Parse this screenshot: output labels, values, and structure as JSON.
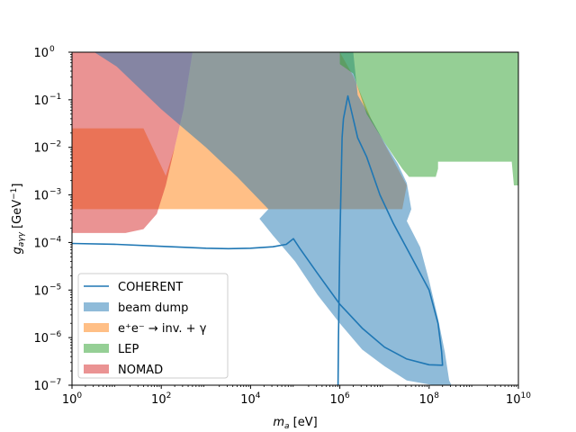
{
  "chart_data": {
    "type": "area",
    "title": "",
    "xlabel_main": "m",
    "xlabel_sub": "a",
    "xlabel_unit": " [eV]",
    "ylabel_main": "g",
    "ylabel_sub": "aγγ",
    "ylabel_unit_pre": " [GeV",
    "ylabel_unit_sup": "−1",
    "ylabel_unit_post": "]",
    "xscale": "log",
    "yscale": "log",
    "xlim_exp": [
      0,
      10
    ],
    "ylim_exp": [
      -7,
      0
    ],
    "x_ticks": [
      {
        "base": "10",
        "exp": "0"
      },
      {
        "base": "10",
        "exp": "2"
      },
      {
        "base": "10",
        "exp": "4"
      },
      {
        "base": "10",
        "exp": "6"
      },
      {
        "base": "10",
        "exp": "8"
      },
      {
        "base": "10",
        "exp": "10"
      }
    ],
    "y_ticks": [
      {
        "base": "10",
        "exp": "−7"
      },
      {
        "base": "10",
        "exp": "−6"
      },
      {
        "base": "10",
        "exp": "−5"
      },
      {
        "base": "10",
        "exp": "−4"
      },
      {
        "base": "10",
        "exp": "−3"
      },
      {
        "base": "10",
        "exp": "−2"
      },
      {
        "base": "10",
        "exp": "−1"
      },
      {
        "base": "10",
        "exp": "0"
      }
    ],
    "legend_position": "lower-left",
    "grid": false,
    "series": [
      {
        "name": "COHERENT",
        "kind": "line",
        "color": "#1f77b4",
        "points_log10": [
          [
            0.0,
            -4.02
          ],
          [
            1.0,
            -4.04
          ],
          [
            2.0,
            -4.08
          ],
          [
            3.0,
            -4.12
          ],
          [
            3.5,
            -4.13
          ],
          [
            4.0,
            -4.12
          ],
          [
            4.5,
            -4.09
          ],
          [
            4.8,
            -4.04
          ],
          [
            4.96,
            -3.92
          ],
          [
            5.1,
            -4.12
          ],
          [
            5.5,
            -4.65
          ],
          [
            6.0,
            -5.3
          ],
          [
            6.5,
            -5.8
          ],
          [
            7.0,
            -6.2
          ],
          [
            7.5,
            -6.45
          ],
          [
            8.0,
            -6.57
          ],
          [
            8.3,
            -6.58
          ],
          [
            8.28,
            -6.3
          ],
          [
            8.2,
            -5.7
          ],
          [
            8.0,
            -5.0
          ],
          [
            7.6,
            -4.3
          ],
          [
            7.2,
            -3.6
          ],
          [
            6.9,
            -3.0
          ],
          [
            6.6,
            -2.2
          ],
          [
            6.4,
            -1.8
          ],
          [
            6.25,
            -1.2
          ],
          [
            6.18,
            -0.92
          ],
          [
            6.08,
            -1.4
          ],
          [
            6.05,
            -1.8
          ],
          [
            6.0,
            -4.0
          ],
          [
            5.97,
            -6.0
          ],
          [
            5.96,
            -7.0
          ]
        ]
      },
      {
        "name": "beam dump",
        "kind": "area",
        "color": "#1f77b4",
        "opacity": 0.5,
        "points_log10": [
          [
            5.92,
            0.0
          ],
          [
            6.3,
            0.0
          ],
          [
            6.4,
            -0.9
          ],
          [
            7.0,
            -1.9
          ],
          [
            7.3,
            -2.35
          ],
          [
            7.5,
            -2.75
          ],
          [
            7.6,
            -3.3
          ],
          [
            7.5,
            -3.55
          ],
          [
            7.8,
            -4.1
          ],
          [
            8.0,
            -4.8
          ],
          [
            8.2,
            -5.6
          ],
          [
            8.35,
            -6.3
          ],
          [
            8.45,
            -6.9
          ],
          [
            8.5,
            -7.0
          ],
          [
            8.1,
            -7.0
          ],
          [
            7.5,
            -6.9
          ],
          [
            7.0,
            -6.6
          ],
          [
            6.5,
            -6.25
          ],
          [
            6.0,
            -5.7
          ],
          [
            5.5,
            -5.1
          ],
          [
            5.0,
            -4.4
          ],
          [
            4.5,
            -3.85
          ],
          [
            4.2,
            -3.5
          ],
          [
            4.4,
            -3.3
          ],
          [
            3.7,
            -2.62
          ],
          [
            3.0,
            -2.0
          ],
          [
            2.0,
            -1.2
          ],
          [
            1.0,
            -0.3
          ],
          [
            0.5,
            0.0
          ]
        ]
      },
      {
        "name": "e⁺e⁻ → inv. + γ",
        "kind": "area",
        "color": "#ff7f0e",
        "opacity": 0.5,
        "points_log10": [
          [
            0.0,
            0.0
          ],
          [
            10.0,
            0.0
          ],
          [
            10.0,
            -3.3
          ],
          [
            0.0,
            -3.3
          ]
        ],
        "clip_note": "upper boundary follows region top"
      },
      {
        "name": "LEP",
        "kind": "area",
        "color": "#2ca02c",
        "opacity": 0.5,
        "points_log10": [
          [
            6.0,
            0.0
          ],
          [
            10.0,
            0.0
          ],
          [
            10.0,
            -2.8
          ],
          [
            9.9,
            -2.8
          ],
          [
            9.85,
            -2.3
          ],
          [
            8.2,
            -2.3
          ],
          [
            8.2,
            -2.45
          ],
          [
            8.15,
            -2.62
          ],
          [
            7.55,
            -2.62
          ],
          [
            7.4,
            -2.45
          ],
          [
            7.0,
            -1.9
          ],
          [
            6.6,
            -1.3
          ],
          [
            6.3,
            -0.45
          ],
          [
            6.0,
            -0.25
          ]
        ]
      },
      {
        "name": "NOMAD",
        "kind": "area",
        "color": "#d62728",
        "opacity": 0.5,
        "points_log10": [
          [
            0.0,
            0.0
          ],
          [
            2.7,
            0.0
          ],
          [
            2.5,
            -1.2
          ],
          [
            2.3,
            -2.0
          ],
          [
            2.1,
            -2.8
          ],
          [
            1.9,
            -3.4
          ],
          [
            1.6,
            -3.72
          ],
          [
            1.2,
            -3.8
          ],
          [
            0.0,
            -3.8
          ]
        ]
      }
    ]
  }
}
